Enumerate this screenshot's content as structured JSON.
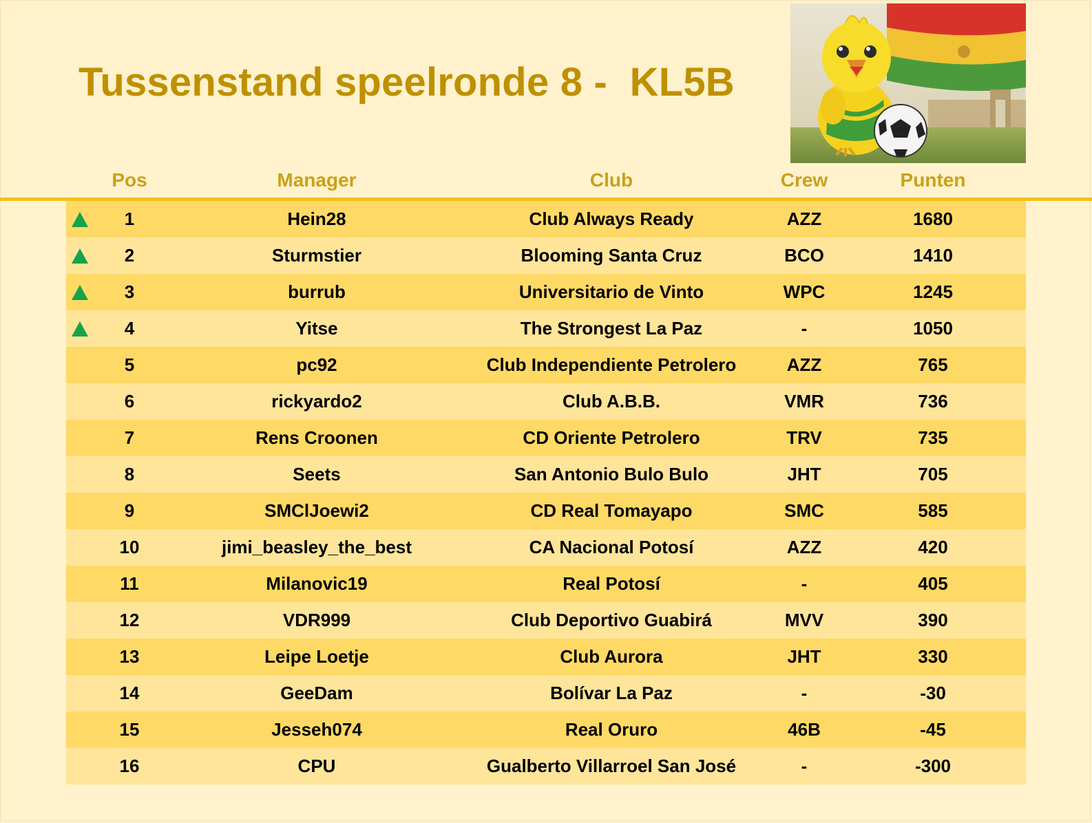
{
  "title": "Tussenstand speelronde 8 -  KL5B",
  "columns": {
    "pos": "Pos",
    "manager": "Manager",
    "club": "Club",
    "crew": "Crew",
    "punten": "Punten"
  },
  "colors": {
    "title": "#bf9000",
    "header": "#c9a11a",
    "row_odd": "#ffd966",
    "row_even": "#ffe599",
    "arrow_up": "#16a34a",
    "background": "#fff2cd"
  },
  "rows": [
    {
      "trend": "up-arrow-icon",
      "pos": "1",
      "manager": "Hein28",
      "club": "Club Always Ready",
      "crew": "AZZ",
      "punten": "1680"
    },
    {
      "trend": "up-arrow-icon",
      "pos": "2",
      "manager": "Sturmstier",
      "club": "Blooming Santa Cruz",
      "crew": "BCO",
      "punten": "1410"
    },
    {
      "trend": "up-arrow-icon",
      "pos": "3",
      "manager": "burrub",
      "club": "Universitario de Vinto",
      "crew": "WPC",
      "punten": "1245"
    },
    {
      "trend": "up-arrow-icon",
      "pos": "4",
      "manager": "Yitse",
      "club": "The Strongest La Paz",
      "crew": "-",
      "punten": "1050"
    },
    {
      "trend": "",
      "pos": "5",
      "manager": "pc92",
      "club": "Club Independiente Petrolero",
      "crew": "AZZ",
      "punten": "765"
    },
    {
      "trend": "",
      "pos": "6",
      "manager": "rickyardo2",
      "club": "Club A.B.B.",
      "crew": "VMR",
      "punten": "736"
    },
    {
      "trend": "",
      "pos": "7",
      "manager": "Rens Croonen",
      "club": "CD Oriente Petrolero",
      "crew": "TRV",
      "punten": "735"
    },
    {
      "trend": "",
      "pos": "8",
      "manager": "Seets",
      "club": "San Antonio Bulo Bulo",
      "crew": "JHT",
      "punten": "705"
    },
    {
      "trend": "",
      "pos": "9",
      "manager": "SMClJoewi2",
      "club": "CD Real Tomayapo",
      "crew": "SMC",
      "punten": "585"
    },
    {
      "trend": "",
      "pos": "10",
      "manager": "jimi_beasley_the_best",
      "club": "CA Nacional Potosí",
      "crew": "AZZ",
      "punten": "420"
    },
    {
      "trend": "",
      "pos": "11",
      "manager": "Milanovic19",
      "club": "Real Potosí",
      "crew": "-",
      "punten": "405"
    },
    {
      "trend": "",
      "pos": "12",
      "manager": "VDR999",
      "club": "Club Deportivo Guabirá",
      "crew": "MVV",
      "punten": "390"
    },
    {
      "trend": "",
      "pos": "13",
      "manager": "Leipe Loetje",
      "club": "Club Aurora",
      "crew": "JHT",
      "punten": "330"
    },
    {
      "trend": "",
      "pos": "14",
      "manager": "GeeDam",
      "club": "Bolívar La Paz",
      "crew": "-",
      "punten": "-30"
    },
    {
      "trend": "",
      "pos": "15",
      "manager": "Jesseh074",
      "club": "Real Oruro",
      "crew": "46B",
      "punten": "-45"
    },
    {
      "trend": "",
      "pos": "16",
      "manager": "CPU",
      "club": "Gualberto Villarroel San José",
      "crew": "-",
      "punten": "-300"
    }
  ]
}
